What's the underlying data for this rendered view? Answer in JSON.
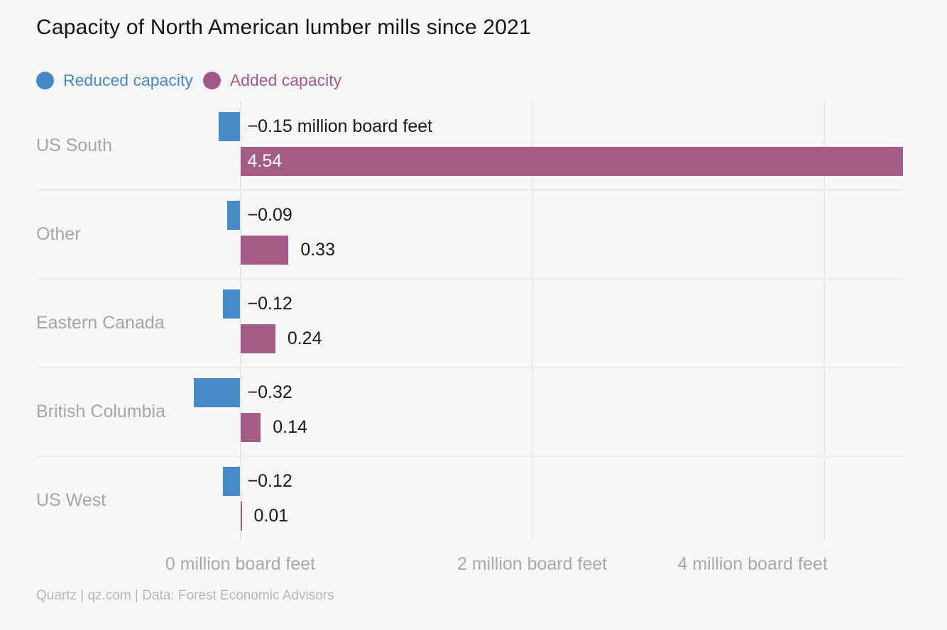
{
  "title": "Capacity of North American lumber mills since 2021",
  "legend": [
    {
      "label": "Reduced capacity",
      "color": "#4289c8"
    },
    {
      "label": "Added capacity",
      "color": "#a3588b"
    }
  ],
  "footer": "Quartz | qz.com | Data: Forest Economic Advisors",
  "colors": {
    "background": "#f7f7f8",
    "reduced_bar": "#478ac8",
    "added_bar": "#a25c86",
    "gridline": "#e9e9ea",
    "row_separator": "#ebebeb",
    "category_text": "#a5a5a6",
    "value_text": "#191919",
    "value_text_inside": "#ffffff",
    "axis_text": "#a9a9aa",
    "footer_text": "#b7b7b8",
    "title_text": "#141414"
  },
  "chart_data": {
    "type": "bar",
    "orientation": "horizontal",
    "title": "Capacity of North American lumber mills since 2021",
    "unit": "million board feet",
    "categories": [
      "US South",
      "Other",
      "Eastern Canada",
      "British Columbia",
      "US West"
    ],
    "series": [
      {
        "name": "Reduced capacity",
        "color": "#478ac8",
        "values": [
          -0.15,
          -0.09,
          -0.12,
          -0.32,
          -0.12
        ],
        "labels": [
          "−0.15 million board feet",
          "−0.09",
          "−0.12",
          "−0.32",
          "−0.12"
        ]
      },
      {
        "name": "Added capacity",
        "color": "#a25c86",
        "values": [
          4.54,
          0.33,
          0.24,
          0.14,
          0.01
        ],
        "labels": [
          "4.54",
          "0.33",
          "0.24",
          "0.14",
          "0.01"
        ],
        "label_inside": [
          true,
          false,
          false,
          false,
          false
        ]
      }
    ],
    "x_ticks": [
      {
        "value": 0,
        "label": "0 million board feet",
        "align": "center"
      },
      {
        "value": 2,
        "label": "2 million board feet",
        "align": "center"
      },
      {
        "value": 4,
        "label": "4 million board feet",
        "align": "right"
      }
    ],
    "xlim": [
      -0.32,
      4.54
    ],
    "grid": true,
    "legend_position": "top"
  }
}
